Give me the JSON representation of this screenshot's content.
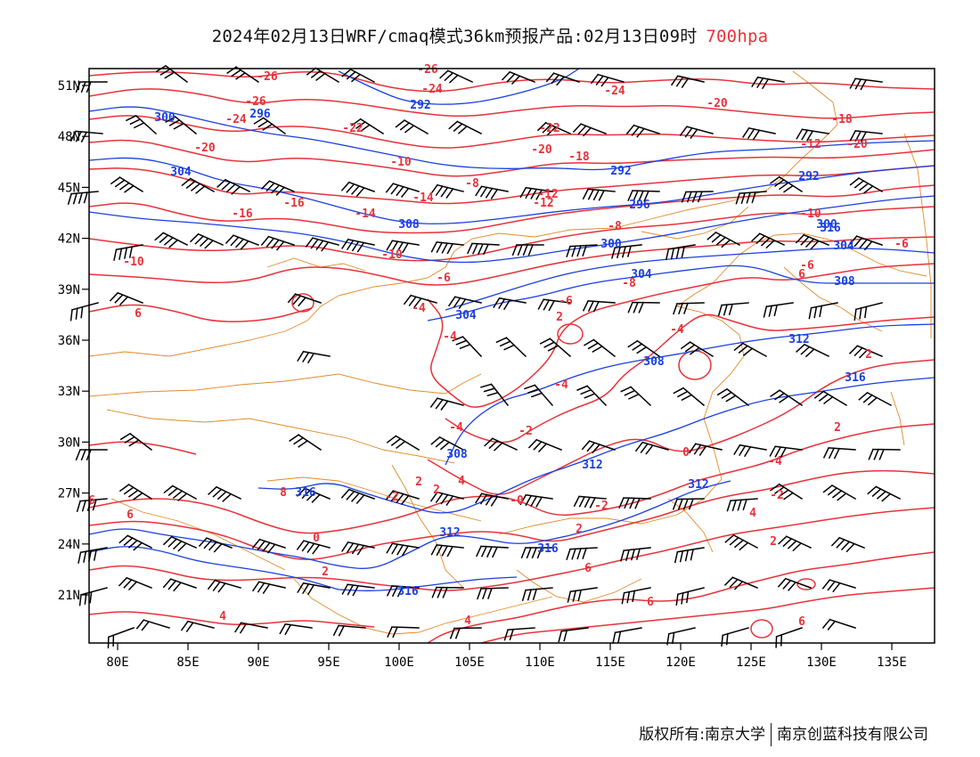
{
  "title": {
    "main": "2024年02月13日WRF/cmaq模式36km预报产品:02月13日09时",
    "level": "700hpa",
    "level_color": "#e8323a"
  },
  "colors": {
    "temperature": "#e8323a",
    "height": "#1a3fe0",
    "border": "#e08a2a",
    "wind": "#000000",
    "frame": "#000000"
  },
  "axes": {
    "lon_labels": [
      "80E",
      "85E",
      "90E",
      "95E",
      "100E",
      "105E",
      "110E",
      "115E",
      "120E",
      "125E",
      "130E",
      "135E"
    ],
    "lat_labels": [
      "51N",
      "48N",
      "45N",
      "42N",
      "39N",
      "36N",
      "33N",
      "30N",
      "27N",
      "24N",
      "21N"
    ]
  },
  "map_labels": {
    "temperature": [
      "-26",
      "-26",
      "-24",
      "-26",
      "-24",
      "-22",
      "-20",
      "-24",
      "-22",
      "-20",
      "-18",
      "-20",
      "-18",
      "-20",
      "-12",
      "-10",
      "-8",
      "-16",
      "-16",
      "-14",
      "-12",
      "-14",
      "-12",
      "-10",
      "-10",
      "-8",
      "-6",
      "-6",
      "-10",
      "-8",
      "-6",
      "-6",
      "-4",
      "-4",
      "2",
      "-4",
      "-2",
      "-4",
      "0",
      "-4",
      "2",
      "-2",
      "4",
      "-2",
      "0",
      "2",
      "4",
      "2",
      "2",
      "2",
      "4",
      "6",
      "6",
      "4",
      "6",
      "6",
      "6",
      "6",
      "8",
      "6",
      "2",
      "-4",
      "-2",
      "-0",
      "2"
    ],
    "height": [
      "300",
      "296",
      "292",
      "304",
      "292",
      "308",
      "300",
      "292",
      "296",
      "300",
      "304",
      "304",
      "308",
      "304",
      "308",
      "312",
      "316",
      "308",
      "312",
      "316",
      "312",
      "312",
      "316",
      "316",
      "316"
    ]
  },
  "copyright": {
    "owner": "版权所有:南京大学",
    "company": "南京创蓝科技有限公司"
  }
}
